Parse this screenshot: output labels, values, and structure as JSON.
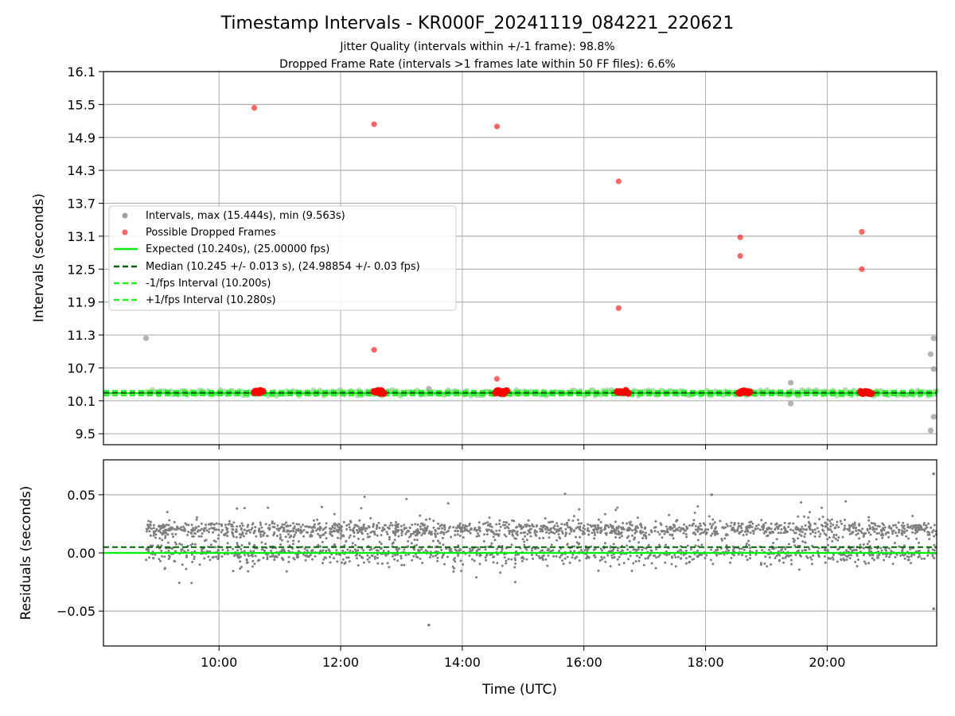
{
  "chart_data": [
    {
      "type": "scatter",
      "title": "Timestamp Intervals - KR000F_20241119_084221_220621",
      "subtitle_lines": [
        "Jitter Quality (intervals within +/-1 frame): 98.8%",
        "Dropped Frame Rate (intervals >1 frames late within 50 FF files): 6.6%"
      ],
      "ylabel": "Intervals (seconds)",
      "xlim_hours": [
        8.1,
        21.8
      ],
      "ylim": [
        9.3,
        16.1
      ],
      "y_ticks": [
        9.5,
        10.1,
        10.7,
        11.3,
        11.9,
        12.5,
        13.1,
        13.7,
        14.3,
        14.9,
        15.5,
        16.1
      ],
      "y_tick_labels": [
        "9.5",
        "10.1",
        "10.7",
        "11.3",
        "11.9",
        "12.5",
        "13.1",
        "13.7",
        "14.3",
        "14.9",
        "15.5",
        "16.1"
      ],
      "grid": true,
      "legend_position": "center-left",
      "legend": [
        "Intervals, max (15.444s), min (9.563s)",
        "Possible Dropped Frames",
        "Expected (10.240s), (25.00000 fps)",
        "Median (10.245 +/- 0.013 s), (24.98854 +/- 0.03 fps)",
        "-1/fps Interval (10.200s)",
        "+1/fps Interval (10.280s)"
      ],
      "reference_lines": {
        "expected": 10.24,
        "median": 10.245,
        "minus_one_fps": 10.2,
        "plus_one_fps": 10.28
      },
      "baseline_band": {
        "x_start_hour": 8.8,
        "x_end_hour": 21.8,
        "y_low": 10.19,
        "y_high": 10.3
      },
      "gray_outliers": [
        {
          "x": 8.8,
          "y": 11.24
        },
        {
          "x": 13.45,
          "y": 10.32
        },
        {
          "x": 19.4,
          "y": 10.43
        },
        {
          "x": 19.4,
          "y": 10.05
        },
        {
          "x": 21.75,
          "y": 11.24
        },
        {
          "x": 21.7,
          "y": 10.95
        },
        {
          "x": 21.75,
          "y": 10.68
        },
        {
          "x": 21.75,
          "y": 9.81
        },
        {
          "x": 21.7,
          "y": 9.56
        }
      ],
      "dropped_frames": [
        {
          "x": 10.58,
          "y": 15.44
        },
        {
          "x": 12.55,
          "y": 15.14
        },
        {
          "x": 12.55,
          "y": 11.03
        },
        {
          "x": 14.57,
          "y": 15.1
        },
        {
          "x": 14.57,
          "y": 10.5
        },
        {
          "x": 16.57,
          "y": 14.1
        },
        {
          "x": 16.57,
          "y": 11.79
        },
        {
          "x": 18.57,
          "y": 13.08
        },
        {
          "x": 18.57,
          "y": 12.74
        },
        {
          "x": 20.57,
          "y": 13.18
        },
        {
          "x": 20.57,
          "y": 12.5
        }
      ],
      "dropped_clusters_near_baseline": [
        {
          "x_start": 10.58,
          "x_end": 10.73,
          "y": 10.26
        },
        {
          "x_start": 12.55,
          "x_end": 12.72,
          "y": 10.26
        },
        {
          "x_start": 14.55,
          "x_end": 14.73,
          "y": 10.26
        },
        {
          "x_start": 16.55,
          "x_end": 16.73,
          "y": 10.26
        },
        {
          "x_start": 18.55,
          "x_end": 18.73,
          "y": 10.26
        },
        {
          "x_start": 20.55,
          "x_end": 20.73,
          "y": 10.26
        }
      ]
    },
    {
      "type": "scatter",
      "xlabel": "Time (UTC)",
      "ylabel": "Residuals (seconds)",
      "xlim_hours": [
        8.1,
        21.8
      ],
      "ylim": [
        -0.08,
        0.08
      ],
      "x_ticks_hours": [
        10,
        12,
        14,
        16,
        18,
        20
      ],
      "x_tick_labels": [
        "10:00",
        "12:00",
        "14:00",
        "16:00",
        "18:00",
        "20:00"
      ],
      "y_ticks": [
        -0.05,
        0.0,
        0.05
      ],
      "y_tick_labels": [
        "−0.05",
        "0.00",
        "0.05"
      ],
      "grid": true,
      "reference_lines": {
        "zero": 0.0,
        "median_offset": 0.005
      },
      "residual_distribution": {
        "x_start_hour": 8.8,
        "x_end_hour": 21.8,
        "main_band_center": 0.02,
        "secondary_band_center": 0.0,
        "spread": 0.02
      },
      "residual_outliers": [
        {
          "x": 13.45,
          "y": -0.062
        },
        {
          "x": 21.75,
          "y": 0.068
        },
        {
          "x": 21.75,
          "y": -0.048
        },
        {
          "x": 18.1,
          "y": 0.05
        }
      ]
    }
  ],
  "colors": {
    "gray_points": "#a0a0a0",
    "residual_points": "#7f7f7f",
    "dropped": "#ff0000",
    "expected": "#00ee00",
    "median": "#006400",
    "fps_lines": "#22ee22",
    "grid": "#b0b0b0"
  }
}
